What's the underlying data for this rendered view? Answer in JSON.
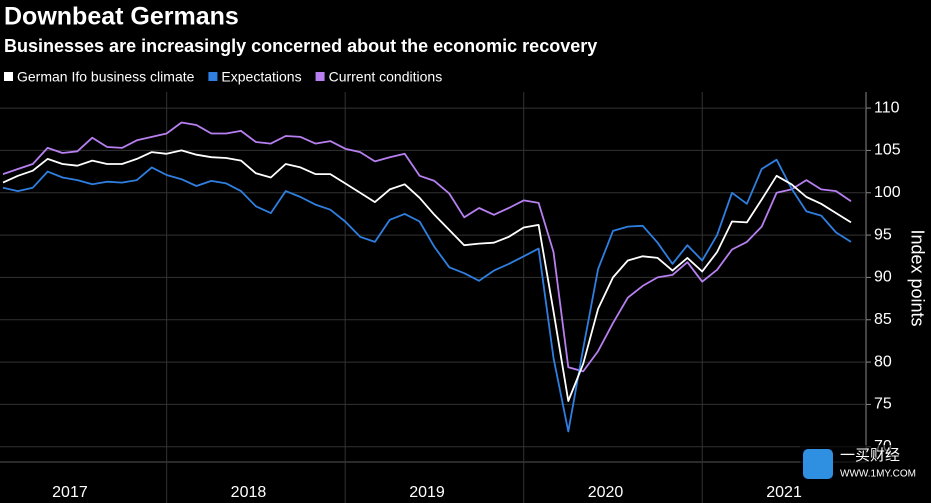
{
  "chart_data": {
    "type": "line",
    "title": "Downbeat Germans",
    "subtitle": "Businesses are increasingly concerned about the economic recovery",
    "y_label": "Index points",
    "watermark": [
      "一买财经",
      "WWW.1MY.COM"
    ],
    "categories": [
      null,
      null,
      null,
      null,
      null,
      "2017",
      null,
      null,
      null,
      null,
      null,
      null,
      null,
      null,
      null,
      null,
      null,
      "2018",
      null,
      null,
      null,
      null,
      null,
      null,
      null,
      null,
      null,
      null,
      null,
      "2019",
      null,
      null,
      null,
      null,
      null,
      null,
      null,
      null,
      null,
      null,
      null,
      "2020",
      null,
      null,
      null,
      null,
      null,
      null,
      null,
      null,
      null,
      null,
      null,
      "2021",
      null,
      null,
      null,
      null
    ],
    "series": [
      {
        "name": "German Ifo business climate",
        "color": "#ffffff",
        "values": [
          101.2,
          102.0,
          102.6,
          104.0,
          103.4,
          103.2,
          103.8,
          103.4,
          103.4,
          104.0,
          104.8,
          104.6,
          105.0,
          104.5,
          104.2,
          104.1,
          103.8,
          102.3,
          101.8,
          103.4,
          103.0,
          102.2,
          102.2,
          101.1,
          100.0,
          98.9,
          100.4,
          101.0,
          99.4,
          97.4,
          95.6,
          93.8,
          94.0,
          94.1,
          94.8,
          95.9,
          96.2,
          86.0,
          75.4,
          79.8,
          86.3,
          90.0,
          92.0,
          92.5,
          92.3,
          90.8,
          92.3,
          90.7,
          93.0,
          96.6,
          96.5,
          99.2,
          102.0,
          101.0,
          99.5,
          98.7,
          97.6,
          96.5
        ]
      },
      {
        "name": "Expectations",
        "color": "#2f7fe0",
        "values": [
          100.6,
          100.2,
          100.6,
          102.5,
          101.8,
          101.5,
          101.0,
          101.3,
          101.2,
          101.5,
          103.0,
          102.1,
          101.6,
          100.8,
          101.4,
          101.1,
          100.2,
          98.4,
          97.6,
          100.2,
          99.5,
          98.6,
          98.0,
          96.6,
          94.8,
          94.2,
          96.8,
          97.5,
          96.6,
          93.6,
          91.2,
          90.5,
          89.6,
          90.8,
          91.6,
          92.5,
          93.4,
          80.5,
          71.8,
          81.6,
          91.0,
          95.5,
          96.0,
          96.1,
          94.1,
          91.6,
          93.8,
          92.0,
          95.0,
          100.0,
          98.7,
          102.8,
          103.9,
          100.5,
          97.8,
          97.3,
          95.3,
          94.2
        ]
      },
      {
        "name": "Current conditions",
        "color": "#b77ff0",
        "values": [
          102.2,
          102.8,
          103.4,
          105.3,
          104.7,
          104.9,
          106.5,
          105.4,
          105.3,
          106.2,
          106.6,
          107.0,
          108.3,
          108.0,
          107.0,
          107.0,
          107.3,
          106.0,
          105.8,
          106.7,
          106.6,
          105.8,
          106.1,
          105.2,
          104.8,
          103.7,
          104.2,
          104.6,
          102.0,
          101.4,
          99.9,
          97.1,
          98.2,
          97.4,
          98.2,
          99.1,
          98.8,
          93.0,
          79.4,
          78.9,
          81.3,
          84.6,
          87.6,
          89.0,
          90.0,
          90.3,
          91.8,
          89.5,
          90.9,
          93.3,
          94.2,
          96.0,
          100.0,
          100.4,
          101.5,
          100.4,
          100.2,
          99.0
        ]
      }
    ],
    "ylim": [
      68.2,
      111.9
    ],
    "yticks": [
      70,
      75,
      80,
      85,
      90,
      95,
      100,
      105,
      110
    ],
    "grid": true
  }
}
